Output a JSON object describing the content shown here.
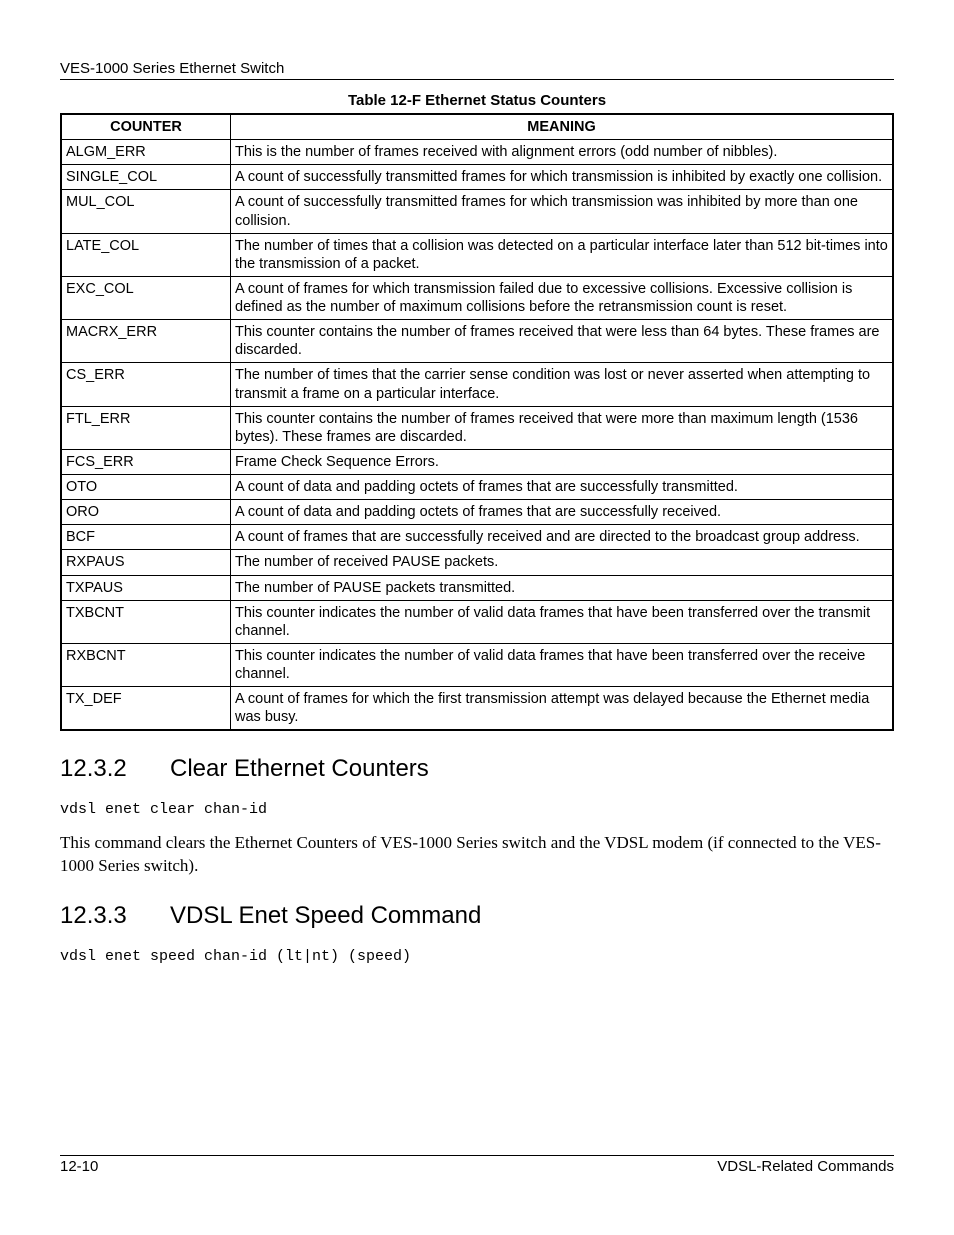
{
  "header": "VES-1000 Series Ethernet Switch",
  "table": {
    "title": "Table 12-F Ethernet Status Counters",
    "columns": [
      "COUNTER",
      "MEANING"
    ],
    "rows": [
      [
        "ALGM_ERR",
        "This is the number of frames received with alignment errors (odd number of nibbles)."
      ],
      [
        "SINGLE_COL",
        "A count of successfully transmitted frames for which transmission is inhibited by exactly one collision."
      ],
      [
        "MUL_COL",
        "A count of successfully transmitted frames for which transmission was inhibited by more than one collision."
      ],
      [
        "LATE_COL",
        "The number of times that a collision was detected on a particular interface later than 512 bit-times into the transmission of a packet."
      ],
      [
        "EXC_COL",
        "A count of frames for which transmission failed due to excessive collisions. Excessive collision is defined as the number of maximum collisions before the retransmission count is reset."
      ],
      [
        "MACRX_ERR",
        "This counter contains the number of frames received that were less than 64 bytes. These frames are discarded."
      ],
      [
        "CS_ERR",
        "The number of times that the carrier sense condition was lost or never asserted when attempting to transmit a frame on a particular interface."
      ],
      [
        "FTL_ERR",
        "This counter contains the number of frames received that were more than maximum length (1536 bytes). These frames are discarded."
      ],
      [
        "FCS_ERR",
        "Frame Check Sequence Errors."
      ],
      [
        "OTO",
        "A count of data and padding octets of frames that are successfully transmitted."
      ],
      [
        "ORO",
        "A count of data and padding octets of frames that are successfully received."
      ],
      [
        "BCF",
        "A count of frames that are successfully received and are directed to the broadcast group address."
      ],
      [
        "RXPAUS",
        "The number of received PAUSE packets."
      ],
      [
        "TXPAUS",
        "The number of PAUSE packets transmitted."
      ],
      [
        "TXBCNT",
        "This counter indicates the number of valid data frames that have been transferred over the transmit channel."
      ],
      [
        "RXBCNT",
        "This counter indicates the number of valid data frames that have been transferred over the receive channel."
      ],
      [
        "TX_DEF",
        "A count of frames for which the first transmission attempt was delayed because the Ethernet media was busy."
      ]
    ]
  },
  "sections": [
    {
      "num": "12.3.2",
      "title": "Clear Ethernet Counters",
      "code": "vdsl enet clear chan-id",
      "body": "This command clears the Ethernet Counters of VES-1000 Series switch and the VDSL modem (if connected to the VES-1000 Series switch)."
    },
    {
      "num": "12.3.3",
      "title": "VDSL Enet Speed Command",
      "code": "vdsl enet speed chan-id (lt|nt) (speed)",
      "body": ""
    }
  ],
  "footer": {
    "left": "12-10",
    "right": "VDSL-Related Commands"
  }
}
